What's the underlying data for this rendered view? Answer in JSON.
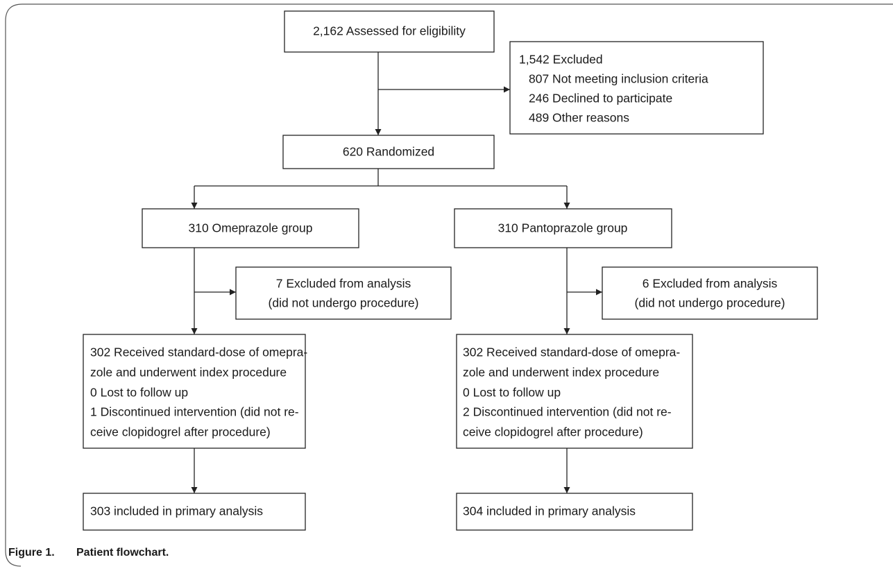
{
  "nodes": [
    {
      "lines": [
        "2,162 Assessed for eligibility"
      ]
    },
    {
      "lines": [
        "1,542 Excluded",
        "807 Not meeting inclusion criteria",
        "246 Declined to participate",
        "489 Other reasons"
      ]
    },
    {
      "lines": [
        "620 Randomized"
      ]
    },
    {
      "lines": [
        "310 Omeprazole group"
      ]
    },
    {
      "lines": [
        "310 Pantoprazole group"
      ]
    },
    {
      "lines": [
        "7 Excluded from analysis",
        "(did not undergo procedure)"
      ]
    },
    {
      "lines": [
        "6 Excluded from analysis",
        "(did not undergo procedure)"
      ]
    },
    {
      "lines": [
        "302 Received standard-dose of omepra-",
        "zole and underwent index procedure",
        "0 Lost to follow up",
        "1 Discontinued intervention (did not re-",
        "ceive clopidogrel after procedure)"
      ]
    },
    {
      "lines": [
        "302 Received standard-dose of omepra-",
        "zole and underwent index procedure",
        "0 Lost to follow up",
        "2 Discontinued intervention (did not re-",
        "ceive clopidogrel after procedure)"
      ]
    },
    {
      "lines": [
        "303 included in primary analysis"
      ]
    },
    {
      "lines": [
        "304 included in primary analysis"
      ]
    }
  ],
  "caption": {
    "label": "Figure 1.",
    "title": "Patient flowchart."
  }
}
